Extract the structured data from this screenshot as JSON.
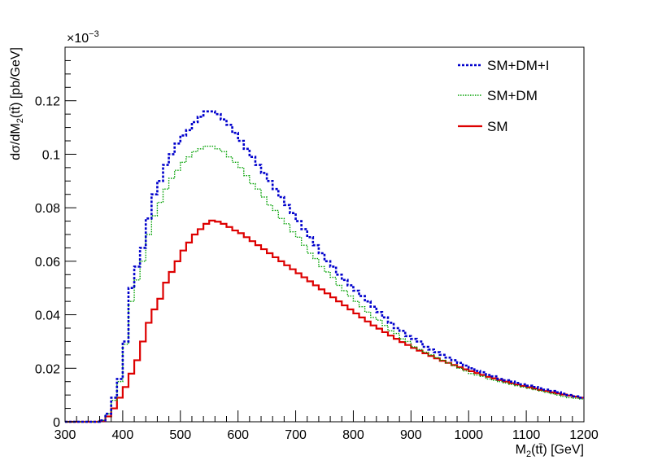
{
  "chart_data": {
    "type": "line",
    "style": "step-histogram",
    "xlabel_main": "M",
    "xlabel_sub": "2",
    "xlabel_rest": "(tt̄) [GeV]",
    "ylabel_main": "dσ/dM",
    "ylabel_sub": "2",
    "ylabel_rest": "(tt̄) [pb/GeV]",
    "y_exponent_base": "×10",
    "y_exponent_power": "−3",
    "xlim": [
      300,
      1200
    ],
    "ylim": [
      0,
      0.14
    ],
    "x_ticks": [
      300,
      400,
      500,
      600,
      700,
      800,
      900,
      1000,
      1100,
      1200
    ],
    "x_tick_labels": [
      "300",
      "400",
      "500",
      "600",
      "700",
      "800",
      "900",
      "1000",
      "1100",
      "1200"
    ],
    "y_ticks": [
      0,
      0.02,
      0.04,
      0.06,
      0.08,
      0.1,
      0.12
    ],
    "y_tick_labels": [
      "0",
      "0.02",
      "0.04",
      "0.06",
      "0.08",
      "0.1",
      "0.12"
    ],
    "bin_width": 10,
    "bin_low_edges": [
      300,
      310,
      320,
      330,
      340,
      350,
      360,
      370,
      380,
      390,
      400,
      410,
      420,
      430,
      440,
      450,
      460,
      470,
      480,
      490,
      500,
      510,
      520,
      530,
      540,
      550,
      560,
      570,
      580,
      590,
      600,
      610,
      620,
      630,
      640,
      650,
      660,
      670,
      680,
      690,
      700,
      710,
      720,
      730,
      740,
      750,
      760,
      770,
      780,
      790,
      800,
      810,
      820,
      830,
      840,
      850,
      860,
      870,
      880,
      890,
      900,
      910,
      920,
      930,
      940,
      950,
      960,
      970,
      980,
      990,
      1000,
      1010,
      1020,
      1030,
      1040,
      1050,
      1060,
      1070,
      1080,
      1090,
      1100,
      1110,
      1120,
      1130,
      1140,
      1150,
      1160,
      1170,
      1180,
      1190
    ],
    "series": [
      {
        "name": "SM+DM+I",
        "color": "#0000cc",
        "dash": "dotted",
        "values": [
          0,
          0,
          0,
          0,
          0,
          0,
          0.0005,
          0.003,
          0.009,
          0.016,
          0.03,
          0.05,
          0.058,
          0.065,
          0.076,
          0.085,
          0.09,
          0.096,
          0.1,
          0.104,
          0.107,
          0.109,
          0.112,
          0.114,
          0.116,
          0.116,
          0.115,
          0.113,
          0.111,
          0.108,
          0.105,
          0.102,
          0.099,
          0.096,
          0.093,
          0.09,
          0.087,
          0.084,
          0.081,
          0.078,
          0.075,
          0.072,
          0.069,
          0.066,
          0.063,
          0.06,
          0.058,
          0.055,
          0.053,
          0.051,
          0.049,
          0.047,
          0.045,
          0.043,
          0.041,
          0.039,
          0.037,
          0.035,
          0.034,
          0.032,
          0.031,
          0.03,
          0.028,
          0.027,
          0.026,
          0.025,
          0.024,
          0.023,
          0.022,
          0.021,
          0.02,
          0.019,
          0.0185,
          0.0175,
          0.017,
          0.016,
          0.0155,
          0.015,
          0.0145,
          0.014,
          0.0135,
          0.013,
          0.0125,
          0.012,
          0.0115,
          0.011,
          0.0105,
          0.01,
          0.0095,
          0.009
        ]
      },
      {
        "name": "SM+DM",
        "color": "#00a000",
        "dash": "dotted",
        "values": [
          0,
          0,
          0,
          0,
          0,
          0,
          0.0005,
          0.003,
          0.008,
          0.015,
          0.029,
          0.045,
          0.053,
          0.06,
          0.07,
          0.077,
          0.082,
          0.087,
          0.091,
          0.094,
          0.097,
          0.099,
          0.101,
          0.102,
          0.103,
          0.103,
          0.102,
          0.101,
          0.099,
          0.097,
          0.095,
          0.092,
          0.089,
          0.087,
          0.084,
          0.081,
          0.079,
          0.076,
          0.074,
          0.071,
          0.069,
          0.066,
          0.063,
          0.061,
          0.058,
          0.056,
          0.054,
          0.051,
          0.049,
          0.047,
          0.045,
          0.043,
          0.041,
          0.039,
          0.038,
          0.036,
          0.034,
          0.033,
          0.031,
          0.03,
          0.028,
          0.027,
          0.026,
          0.025,
          0.024,
          0.023,
          0.022,
          0.021,
          0.02,
          0.019,
          0.018,
          0.0175,
          0.017,
          0.016,
          0.0155,
          0.015,
          0.0145,
          0.014,
          0.0135,
          0.013,
          0.0125,
          0.012,
          0.0115,
          0.011,
          0.0105,
          0.01,
          0.0095,
          0.009,
          0.0088,
          0.0085
        ]
      },
      {
        "name": "SM",
        "color": "#dd0000",
        "dash": "solid",
        "values": [
          0,
          0,
          0,
          0,
          0,
          0,
          0.0003,
          0.002,
          0.005,
          0.009,
          0.013,
          0.018,
          0.023,
          0.03,
          0.037,
          0.042,
          0.046,
          0.052,
          0.056,
          0.06,
          0.064,
          0.067,
          0.07,
          0.072,
          0.074,
          0.0752,
          0.0748,
          0.074,
          0.0728,
          0.0715,
          0.0705,
          0.069,
          0.0675,
          0.066,
          0.0645,
          0.063,
          0.0615,
          0.06,
          0.0585,
          0.057,
          0.0555,
          0.054,
          0.0525,
          0.051,
          0.0495,
          0.048,
          0.0465,
          0.045,
          0.0435,
          0.042,
          0.0405,
          0.039,
          0.0375,
          0.036,
          0.0348,
          0.0335,
          0.0322,
          0.031,
          0.0298,
          0.0287,
          0.0276,
          0.0266,
          0.0256,
          0.0246,
          0.0237,
          0.0228,
          0.022,
          0.0212,
          0.0204,
          0.0196,
          0.0189,
          0.0182,
          0.0175,
          0.0168,
          0.0162,
          0.0156,
          0.015,
          0.0144,
          0.0139,
          0.0134,
          0.0129,
          0.0124,
          0.0119,
          0.0115,
          0.011,
          0.0106,
          0.0102,
          0.0098,
          0.0094,
          0.009
        ]
      }
    ],
    "legend_placement": "top-right",
    "grid": false
  }
}
